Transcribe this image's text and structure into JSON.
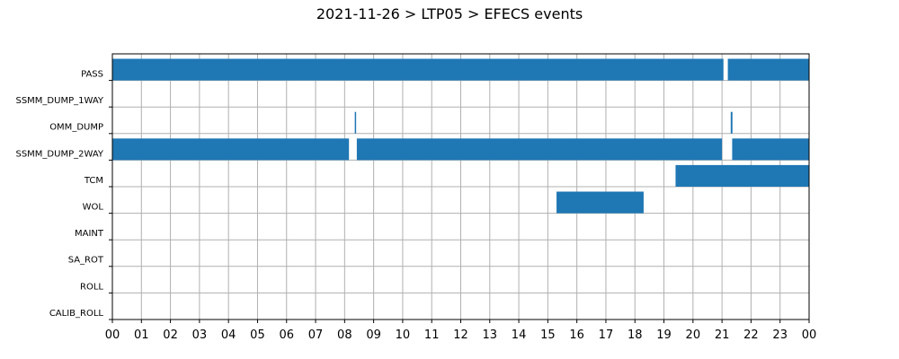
{
  "chart_data": {
    "type": "gantt",
    "title": "2021-11-26 > LTP05 > EFECS events",
    "xlabel": "",
    "ylabel": "",
    "x_unit": "hour of day",
    "xlim": [
      0,
      24
    ],
    "x_ticks": [
      0,
      1,
      2,
      3,
      4,
      5,
      6,
      7,
      8,
      9,
      10,
      11,
      12,
      13,
      14,
      15,
      16,
      17,
      18,
      19,
      20,
      21,
      22,
      23,
      24
    ],
    "x_tick_labels": [
      "00",
      "01",
      "02",
      "03",
      "04",
      "05",
      "06",
      "07",
      "08",
      "09",
      "10",
      "11",
      "12",
      "13",
      "14",
      "15",
      "16",
      "17",
      "18",
      "19",
      "20",
      "21",
      "22",
      "23",
      "00"
    ],
    "grid": true,
    "legend": "none",
    "bar_color": "#1f77b4",
    "categories": [
      "PASS",
      "SSMM_DUMP_1WAY",
      "OMM_DUMP",
      "SSMM_DUMP_2WAY",
      "TCM",
      "WOL",
      "MAINT",
      "SA_ROT",
      "ROLL",
      "CALIB_ROLL"
    ],
    "events": [
      {
        "category": "PASS",
        "start": 0.0,
        "end": 21.05
      },
      {
        "category": "PASS",
        "start": 21.2,
        "end": 24.0
      },
      {
        "category": "OMM_DUMP",
        "start": 8.35,
        "end": 8.39
      },
      {
        "category": "OMM_DUMP",
        "start": 21.3,
        "end": 21.36
      },
      {
        "category": "SSMM_DUMP_2WAY",
        "start": 0.0,
        "end": 8.15
      },
      {
        "category": "SSMM_DUMP_2WAY",
        "start": 8.42,
        "end": 21.0
      },
      {
        "category": "SSMM_DUMP_2WAY",
        "start": 21.35,
        "end": 24.0
      },
      {
        "category": "TCM",
        "start": 19.4,
        "end": 24.0
      },
      {
        "category": "WOL",
        "start": 15.3,
        "end": 18.3
      }
    ]
  }
}
